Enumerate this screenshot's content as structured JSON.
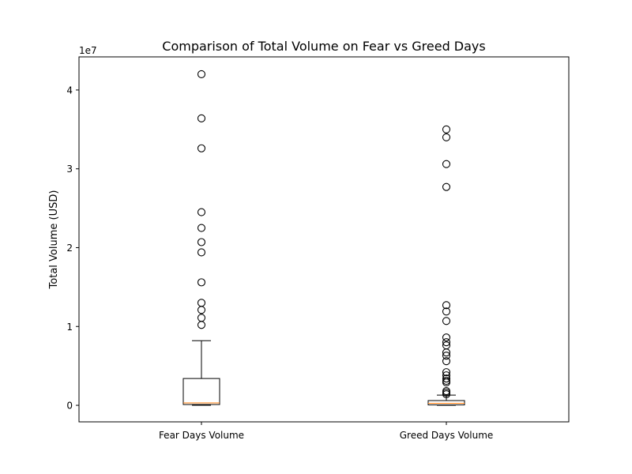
{
  "chart_data": {
    "type": "box",
    "title": "Comparison of Total Volume on Fear vs Greed Days",
    "xlabel": "",
    "ylabel": "Total Volume (USD)",
    "y_offset_label": "1e7",
    "ylim": [
      -2100000,
      44200000
    ],
    "yticks": [
      0,
      10000000,
      20000000,
      30000000,
      40000000
    ],
    "ytick_labels": [
      "0",
      "1",
      "2",
      "3",
      "4"
    ],
    "grid": false,
    "categories": [
      "Fear Days Volume",
      "Greed Days Volume"
    ],
    "boxes": [
      {
        "name": "Fear Days Volume",
        "whisker_low": 0,
        "q1": 100000,
        "median": 300000,
        "q3": 3400000,
        "whisker_high": 8200000,
        "outliers": [
          10200000,
          11100000,
          12100000,
          13000000,
          15600000,
          19400000,
          20700000,
          22500000,
          24500000,
          32600000,
          36400000,
          42000000
        ]
      },
      {
        "name": "Greed Days Volume",
        "whisker_low": 0,
        "q1": 50000,
        "median": 250000,
        "q3": 600000,
        "whisker_high": 1300000,
        "outliers": [
          1400000,
          1600000,
          1800000,
          2900000,
          3100000,
          3400000,
          3800000,
          4200000,
          5600000,
          6300000,
          6700000,
          7600000,
          8000000,
          8600000,
          10700000,
          11900000,
          12700000,
          27700000,
          30600000,
          34000000,
          35000000
        ]
      }
    ],
    "colors": {
      "box": "#000000",
      "median": "#ff7f0e",
      "outlier": "#000000"
    }
  }
}
